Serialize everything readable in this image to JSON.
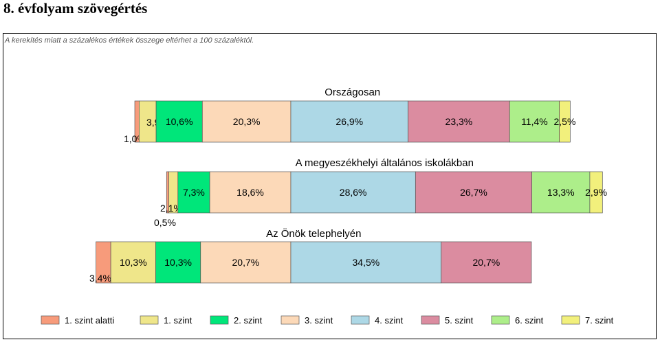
{
  "page_title": "8. évfolyam szövegértés",
  "note": "A kerekítés miatt a  százalékos értékek összege eltérhet a 100 százaléktól.",
  "chart_data": {
    "type": "bar",
    "orientation": "horizontal-stacked",
    "categories": [
      "1. szint alatti",
      "1. szint",
      "2. szint",
      "3. szint",
      "4. szint",
      "5. szint",
      "6. szint",
      "7. szint"
    ],
    "colors": [
      "#f79b7b",
      "#efe68a",
      "#00e67a",
      "#fcd9b8",
      "#add8e6",
      "#db8ca0",
      "#adee8a",
      "#f2f07c"
    ],
    "unit": "%",
    "anchor": "diverging: cut point between 3. szint and 4. szint is aligned across bars",
    "groups": [
      {
        "title": "Országosan",
        "values": [
          1.0,
          3.9,
          10.6,
          20.3,
          26.9,
          23.3,
          11.4,
          2.5
        ],
        "labels": [
          "1,0%",
          "3,9%",
          "10,6%",
          "20,3%",
          "26,9%",
          "23,3%",
          "11,4%",
          "2,5%"
        ]
      },
      {
        "title": "A megyeszékhelyi általános iskolákban",
        "values": [
          0.5,
          2.1,
          7.3,
          18.6,
          28.6,
          26.7,
          13.3,
          2.9
        ],
        "labels": [
          "0,5%",
          "2,1%",
          "7,3%",
          "18,6%",
          "28,6%",
          "26,7%",
          "13,3%",
          "2,9%"
        ]
      },
      {
        "title": "Az Önök telephelyén",
        "values": [
          3.4,
          10.3,
          10.3,
          20.7,
          34.5,
          20.7,
          0,
          0
        ],
        "labels": [
          "3,4%",
          "10,3%",
          "10,3%",
          "20,7%",
          "34,5%",
          "20,7%",
          "",
          ""
        ]
      }
    ],
    "legend": {
      "position": "bottom",
      "items": [
        "1. szint alatti",
        "1. szint",
        "2. szint",
        "3. szint",
        "4. szint",
        "5. szint",
        "6. szint",
        "7. szint"
      ]
    }
  }
}
